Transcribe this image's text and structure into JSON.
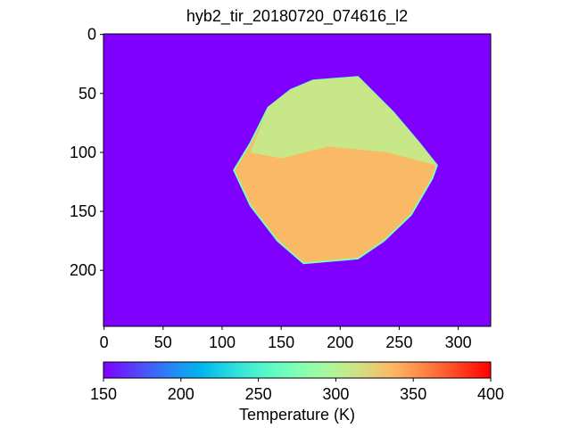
{
  "chart_data": {
    "type": "image",
    "title": "hyb2_tir_20180720_074616_l2",
    "xlim": [
      -0.5,
      327.5
    ],
    "ylim": [
      247.5,
      -0.5
    ],
    "xticks": [
      0,
      50,
      100,
      150,
      200,
      250,
      300
    ],
    "yticks": [
      0,
      50,
      100,
      150,
      200
    ],
    "colormap": "rainbow",
    "background_value": 150,
    "regions": [
      {
        "value": 335,
        "x": [
          110,
          124,
          139,
          158,
          177,
          215,
          226,
          245,
          267,
          282,
          278,
          260,
          237,
          215,
          169,
          147,
          124
        ],
        "y": [
          115,
          92,
          62,
          47,
          39,
          36,
          47,
          66,
          92,
          111,
          122,
          153,
          175,
          190,
          194,
          175,
          145
        ]
      },
      {
        "value": 310,
        "x": [
          124,
          139,
          158,
          177,
          215,
          226,
          245,
          267,
          282,
          240,
          190,
          150
        ],
        "y": [
          100,
          62,
          47,
          39,
          36,
          47,
          66,
          92,
          111,
          100,
          95,
          105
        ]
      }
    ],
    "colorbar": {
      "label": "Temperature (K)",
      "lim": [
        150,
        400
      ],
      "ticks": [
        150,
        200,
        250,
        300,
        350,
        400
      ]
    }
  }
}
